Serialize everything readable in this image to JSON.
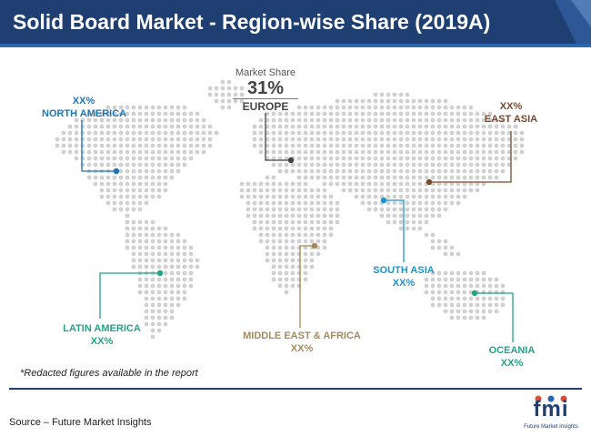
{
  "title": "Solid Board Market - Region-wise Share (2019A)",
  "europe": {
    "header": "Market Share",
    "value": "31%",
    "name": "EUROPE",
    "color": "#444444"
  },
  "regions": [
    {
      "key": "north_america",
      "value": "XX%",
      "name": "NORTH AMERICA",
      "color": "#1b77b8"
    },
    {
      "key": "east_asia",
      "value": "XX%",
      "name": "EAST ASIA",
      "color": "#7a4a2c"
    },
    {
      "key": "south_asia",
      "name": "SOUTH ASIA",
      "value": "XX%",
      "color": "#1b95cf"
    },
    {
      "key": "latin_america",
      "name": "LATIN AMERICA",
      "value": "XX%",
      "color": "#22a586"
    },
    {
      "key": "middle_east_africa",
      "name": "MIDDLE EAST & AFRICA",
      "value": "XX%",
      "color": "#a58a5e"
    },
    {
      "key": "oceania",
      "name": "OCEANIA",
      "value": "XX%",
      "color": "#22a586"
    }
  ],
  "note": "*Redacted figures available in the report",
  "source": "Source – Future Market Insights",
  "logo": {
    "text": "fmi",
    "subtitle": "Future Market Insights"
  },
  "colors": {
    "header": "#1f3f73",
    "map_dot": "#d0d0d0"
  }
}
